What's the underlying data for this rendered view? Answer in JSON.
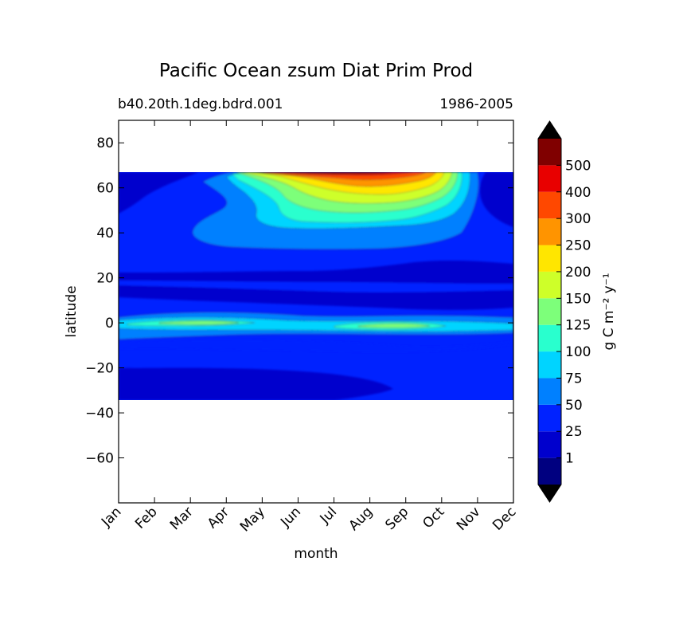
{
  "chart_data": {
    "type": "heatmap",
    "title": "Pacific Ocean zsum Diat Prim Prod",
    "subtitle_left": "b40.20th.1deg.bdrd.001",
    "subtitle_right": "1986-2005",
    "xlabel": "month",
    "ylabel": "latitude",
    "x_ticks": [
      "Jan",
      "Feb",
      "Mar",
      "Apr",
      "May",
      "Jun",
      "Jul",
      "Aug",
      "Sep",
      "Oct",
      "Nov",
      "Dec"
    ],
    "y_ticks": [
      "80",
      "60",
      "40",
      "20",
      "0",
      "−20",
      "−40",
      "−60"
    ],
    "ylim": [
      -80,
      90
    ],
    "data_lat_range": [
      -34,
      67
    ],
    "colorbar": {
      "label": "g C m⁻² y⁻¹",
      "tick_labels": [
        "1",
        "25",
        "50",
        "75",
        "100",
        "125",
        "150",
        "200",
        "250",
        "300",
        "400",
        "500"
      ],
      "levels": [
        1,
        25,
        50,
        75,
        100,
        125,
        150,
        200,
        250,
        300,
        400,
        500
      ],
      "colors": [
        "#000080",
        "#0000cd",
        "#0022ff",
        "#0080ff",
        "#00d4ff",
        "#29ffce",
        "#7dff7a",
        "#ceff29",
        "#ffe600",
        "#ff9400",
        "#ff4800",
        "#e80000",
        "#800000"
      ],
      "extend": "both"
    }
  }
}
